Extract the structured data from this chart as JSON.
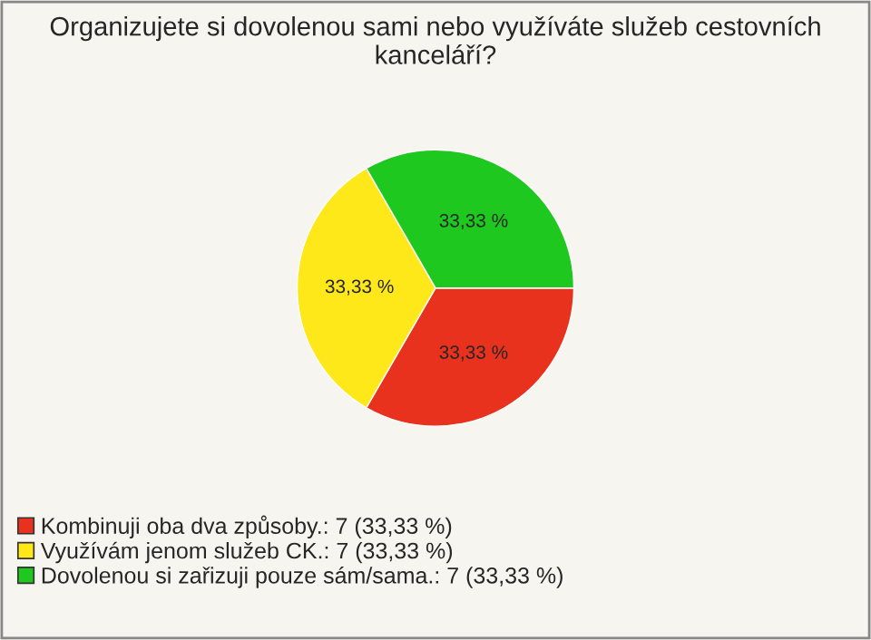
{
  "chart_data": {
    "type": "pie",
    "title": "Organizujete si dovolenou sami nebo využíváte služeb cestovních kanceláří?",
    "categories": [
      "Kombinuji oba dva způsoby.: 7 (33,33 %)",
      "Využívám jenom služeb CK.: 7 (33,33 %)",
      "Dovolenou si zařizuji pouze sám/sama.: 7 (33,33 %)"
    ],
    "values": [
      33.33,
      33.33,
      33.33
    ],
    "value_labels": [
      "33,33 %",
      "33,33 %",
      "33,33 %"
    ],
    "colors": [
      "#e8321e",
      "#ffe81a",
      "#1ec81e"
    ],
    "legend": "bottom left"
  }
}
